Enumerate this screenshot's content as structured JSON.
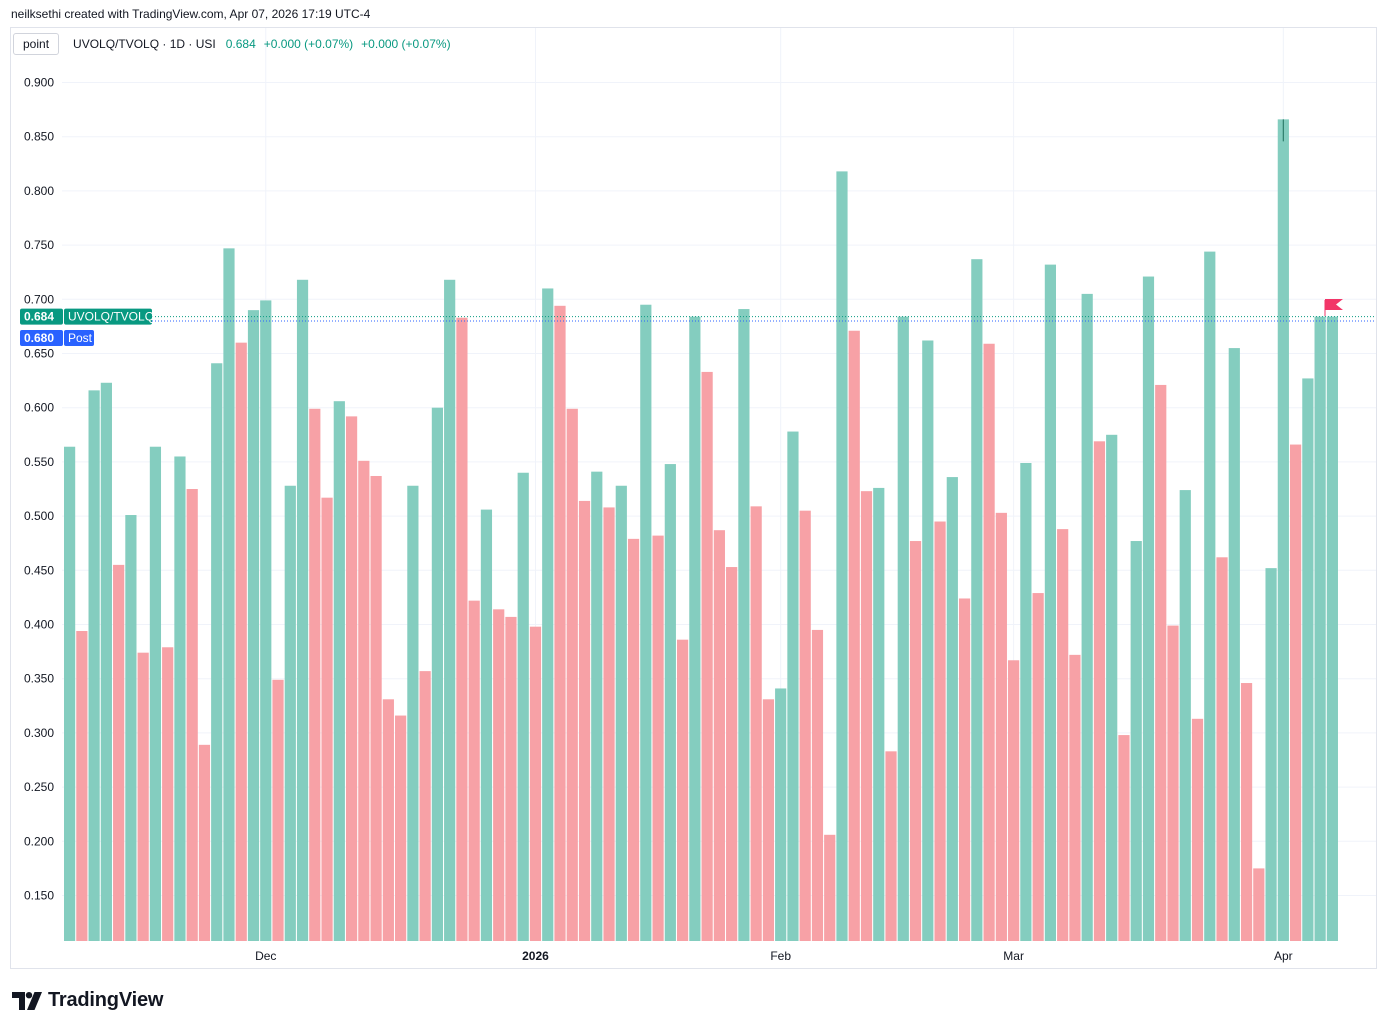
{
  "header": {
    "credit": "neilksethi created with TradingView.com, Apr 07, 2026 17:19 UTC-4"
  },
  "legend": {
    "mode_button": "point",
    "symbol": "UVOLQ/TVOLQ · 1D · USI",
    "last": "0.684",
    "change1": "+0.000 (+0.07%)",
    "change2": "+0.000 (+0.07%)"
  },
  "price_labels": {
    "last_value": "0.684",
    "last_name": "UVOLQ/TVOLQ",
    "post_value": "0.680",
    "post_name": "Post"
  },
  "logo": {
    "text": "TradingView"
  },
  "colors": {
    "up": "#84cdbf",
    "down": "#f7a1a6",
    "last_label": "#089981",
    "post_label": "#2962ff",
    "flag": "#f23668"
  },
  "chart_data": {
    "type": "bar",
    "ylim": [
      0.105,
      0.93
    ],
    "yticks": [
      "0.900",
      "0.850",
      "0.800",
      "0.750",
      "0.700",
      "0.650",
      "0.600",
      "0.550",
      "0.500",
      "0.450",
      "0.400",
      "0.350",
      "0.300",
      "0.250",
      "0.200",
      "0.150"
    ],
    "xticks": [
      {
        "label": "Dec",
        "index": 16.5,
        "bold": false
      },
      {
        "label": "2026",
        "index": 38.5,
        "bold": true
      },
      {
        "label": "Feb",
        "index": 58.5,
        "bold": false
      },
      {
        "label": "Mar",
        "index": 77.5,
        "bold": false
      },
      {
        "label": "Apr",
        "index": 99.5,
        "bold": false
      }
    ],
    "bar_values": [
      0.564,
      0.394,
      0.616,
      0.623,
      0.455,
      0.501,
      0.374,
      0.564,
      0.379,
      0.555,
      0.525,
      0.289,
      0.641,
      0.747,
      0.66,
      0.69,
      0.699,
      0.349,
      0.528,
      0.718,
      0.599,
      0.517,
      0.606,
      0.592,
      0.551,
      0.537,
      0.331,
      0.316,
      0.528,
      0.357,
      0.6,
      0.718,
      0.683,
      0.422,
      0.506,
      0.414,
      0.407,
      0.54,
      0.398,
      0.71,
      0.694,
      0.599,
      0.514,
      0.541,
      0.508,
      0.528,
      0.479,
      0.695,
      0.482,
      0.548,
      0.386,
      0.684,
      0.633,
      0.487,
      0.453,
      0.691,
      0.509,
      0.331,
      0.341,
      0.578,
      0.505,
      0.395,
      0.206,
      0.818,
      0.671,
      0.523,
      0.526,
      0.283,
      0.684,
      0.477,
      0.662,
      0.495,
      0.536,
      0.424,
      0.737,
      0.659,
      0.503,
      0.367,
      0.549,
      0.429,
      0.732,
      0.488,
      0.372,
      0.705,
      0.569,
      0.575,
      0.298,
      0.477,
      0.721,
      0.621,
      0.399,
      0.524,
      0.313,
      0.744,
      0.462,
      0.655,
      0.346,
      0.175,
      0.452,
      0.866,
      0.566,
      0.627,
      0.684,
      0.684
    ],
    "bar_directions": [
      "u",
      "d",
      "u",
      "u",
      "d",
      "u",
      "d",
      "u",
      "d",
      "u",
      "d",
      "d",
      "u",
      "u",
      "d",
      "u",
      "u",
      "d",
      "u",
      "u",
      "d",
      "d",
      "u",
      "d",
      "d",
      "d",
      "d",
      "d",
      "u",
      "d",
      "u",
      "u",
      "d",
      "d",
      "u",
      "d",
      "d",
      "u",
      "d",
      "u",
      "d",
      "d",
      "d",
      "u",
      "d",
      "u",
      "d",
      "u",
      "d",
      "u",
      "d",
      "u",
      "d",
      "d",
      "d",
      "u",
      "d",
      "d",
      "u",
      "u",
      "d",
      "d",
      "d",
      "u",
      "d",
      "d",
      "u",
      "d",
      "u",
      "d",
      "u",
      "d",
      "u",
      "d",
      "u",
      "d",
      "d",
      "d",
      "u",
      "d",
      "u",
      "d",
      "d",
      "u",
      "d",
      "u",
      "d",
      "u",
      "u",
      "d",
      "d",
      "u",
      "d",
      "u",
      "d",
      "u",
      "d",
      "d",
      "u",
      "u",
      "d",
      "u",
      "u",
      "u"
    ],
    "last_value": 0.684,
    "post_value": 0.68
  }
}
